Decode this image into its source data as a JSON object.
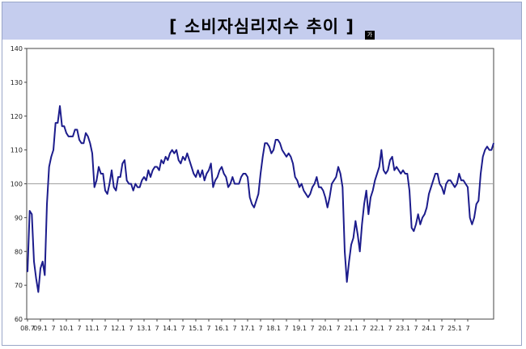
{
  "title": "[ 소비자심리지수 추이 ]",
  "title_tag": "가",
  "chart_data": {
    "type": "line",
    "title": "[ 소비자심리지수 추이 ]",
    "xlabel": "",
    "ylabel": "",
    "ylim": [
      60,
      140
    ],
    "yticks": [
      60,
      70,
      80,
      90,
      100,
      110,
      120,
      130,
      140
    ],
    "reference_line": 100,
    "grid": false,
    "legend": "none",
    "colors": {
      "line": "#1c1c8c",
      "reference": "#a0a0a0"
    },
    "xtick_labels": [
      "08.7",
      "09.1",
      "7",
      "10.1",
      "7",
      "11.1",
      "7",
      "12.1",
      "7",
      "13.1",
      "7",
      "14.1",
      "7",
      "15.1",
      "7",
      "16.1",
      "7",
      "17.1",
      "7",
      "18.1",
      "7",
      "19.1",
      "7",
      "20.1",
      "7",
      "21.1",
      "7",
      "22.1",
      "7",
      "23.1",
      "7",
      "24.1",
      "7",
      "25.1",
      "7"
    ],
    "x_start": "2008-07",
    "x_end": "2025-09",
    "series": [
      {
        "values": [
          74,
          92,
          91,
          77,
          72,
          68,
          75,
          77,
          73,
          94,
          105,
          108,
          110,
          118,
          118,
          123,
          117,
          117,
          115,
          114,
          114,
          114,
          116,
          116,
          113,
          112,
          112,
          115,
          114,
          112,
          109,
          99,
          101,
          105,
          103,
          103,
          98,
          97,
          100,
          104,
          99,
          98,
          102,
          102,
          106,
          107,
          101,
          100,
          100,
          98,
          100,
          99,
          99,
          101,
          102,
          101,
          104,
          102,
          104,
          105,
          105,
          104,
          107,
          106,
          108,
          107,
          109,
          110,
          109,
          110,
          107,
          106,
          108,
          107,
          109,
          107,
          105,
          103,
          102,
          104,
          102,
          104,
          101,
          103,
          104,
          106,
          99,
          101,
          102,
          104,
          105,
          103,
          102,
          99,
          100,
          102,
          100,
          100,
          100,
          102,
          103,
          103,
          102,
          96,
          94,
          93,
          95,
          97,
          103,
          108,
          112,
          112,
          111,
          109,
          110,
          113,
          113,
          112,
          110,
          109,
          108,
          109,
          108,
          106,
          102,
          101,
          99,
          100,
          98,
          97,
          96,
          97,
          99,
          100,
          102,
          99,
          99,
          98,
          96,
          93,
          96,
          100,
          101,
          102,
          105,
          103,
          99,
          80,
          71,
          77,
          82,
          84,
          89,
          85,
          80,
          88,
          94,
          98,
          91,
          96,
          98,
          101,
          103,
          105,
          110,
          104,
          103,
          104,
          107,
          108,
          104,
          105,
          104,
          103,
          104,
          103,
          103,
          98,
          87,
          86,
          88,
          91,
          88,
          90,
          91,
          93,
          97,
          99,
          101,
          103,
          103,
          100,
          99,
          97,
          100,
          101,
          101,
          100,
          99,
          100,
          103,
          101,
          101,
          100,
          99,
          90,
          88,
          90,
          94,
          95,
          103,
          108,
          110,
          111,
          110,
          110,
          112
        ]
      }
    ]
  }
}
